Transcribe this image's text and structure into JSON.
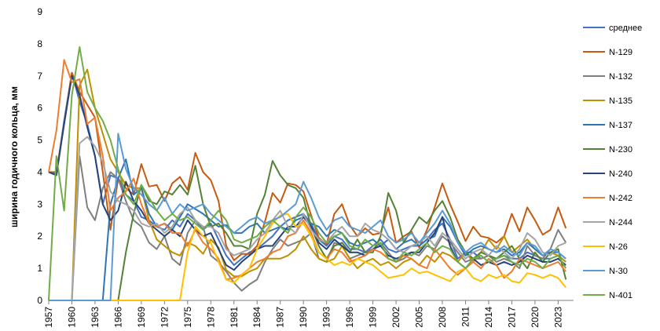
{
  "chart_data": {
    "type": "line",
    "title": "",
    "xlabel": "",
    "ylabel": "ширина годичного кольца, мм",
    "ylim": [
      0,
      9
    ],
    "yticks": [
      0,
      1,
      2,
      3,
      4,
      5,
      6,
      7,
      8,
      9
    ],
    "xlim": [
      1957,
      2025
    ],
    "xticks": [
      1957,
      1960,
      1963,
      1966,
      1969,
      1972,
      1975,
      1978,
      1981,
      1984,
      1987,
      1990,
      1993,
      1996,
      1999,
      2002,
      2005,
      2008,
      2011,
      2014,
      2017,
      2020,
      2023
    ],
    "grid": false,
    "legend_position": "right",
    "series": [
      {
        "name": "среднее",
        "color": "#4472C4",
        "start": 1957,
        "values": [
          4.0,
          3.95,
          5.6,
          7.1,
          6.2,
          5.5,
          4.5,
          3.0,
          3.9,
          3.8,
          3.3,
          3.1,
          2.6,
          2.5,
          2.3,
          2.2,
          2.5,
          2.3,
          2.7,
          2.5,
          2.2,
          2.4,
          1.9,
          1.4,
          1.1,
          1.3,
          1.5,
          1.6,
          1.8,
          2.0,
          2.3,
          2.5,
          2.6,
          2.7,
          2.4,
          1.9,
          1.7,
          2.0,
          1.9,
          1.6,
          1.6,
          1.5,
          1.7,
          1.9,
          1.6,
          1.5,
          1.6,
          1.7,
          1.7,
          1.9,
          2.2,
          2.4,
          1.9,
          1.3,
          1.5,
          1.5,
          1.3,
          1.4,
          1.3,
          1.4,
          1.3,
          1.3,
          1.5,
          1.4,
          1.3,
          1.3,
          1.4,
          1.2
        ]
      },
      {
        "name": "N-129",
        "color": "#C55A11",
        "start": 1957,
        "values": [
          4.0,
          4.0,
          5.5,
          7.1,
          6.5,
          6.1,
          5.7,
          4.0,
          2.2,
          3.8,
          3.5,
          3.3,
          4.25,
          3.55,
          3.6,
          3.1,
          3.65,
          3.85,
          3.45,
          4.6,
          4.0,
          3.75,
          3.1,
          1.7,
          1.25,
          1.45,
          1.45,
          1.7,
          2.45,
          3.35,
          3.05,
          3.65,
          3.6,
          3.4,
          2.65,
          1.95,
          1.75,
          2.7,
          3.0,
          2.35,
          2.0,
          2.25,
          2.05,
          2.1,
          2.9,
          1.8,
          2.0,
          2.15,
          1.65,
          2.2,
          2.9,
          3.65,
          3.0,
          2.45,
          1.85,
          2.3,
          2.0,
          1.95,
          1.8,
          2.0,
          2.7,
          2.15,
          2.9,
          2.5,
          2.05,
          2.2,
          2.9,
          2.25
        ]
      },
      {
        "name": "N-132",
        "color": "#7F7F7F",
        "start": 1957,
        "values": [
          0,
          0,
          0,
          0,
          4.5,
          2.9,
          2.5,
          3.5,
          4.0,
          3.8,
          3.1,
          2.5,
          2.3,
          1.8,
          1.6,
          2.0,
          1.3,
          1.1,
          2.1,
          2.5,
          2.3,
          1.4,
          1.2,
          0.9,
          0.55,
          0.3,
          0.5,
          0.65,
          1.2,
          1.6,
          1.9,
          1.7,
          1.8,
          1.9,
          2.1,
          1.3,
          1.2,
          1.8,
          1.7,
          1.3,
          1.4,
          1.5,
          1.6,
          1.8,
          1.5,
          1.2,
          1.3,
          1.5,
          1.4,
          1.7,
          1.6,
          2.0,
          1.8,
          1.5,
          1.2,
          1.3,
          1.3,
          1.4,
          1.2,
          1.3,
          1.2,
          1.0,
          1.7,
          1.4,
          1.3,
          1.6,
          2.2,
          1.8
        ]
      },
      {
        "name": "N-135",
        "color": "#BF9000",
        "start": 1957,
        "values": [
          0,
          0,
          0,
          0,
          6.7,
          7.2,
          6.0,
          5.2,
          4.4,
          4.0,
          3.6,
          3.5,
          3.5,
          2.5,
          1.9,
          1.7,
          1.5,
          1.4,
          1.8,
          1.7,
          1.45,
          1.9,
          1.65,
          0.95,
          0.75,
          0.75,
          0.9,
          1.0,
          1.3,
          1.3,
          1.3,
          1.4,
          1.6,
          2.0,
          1.6,
          1.3,
          1.2,
          1.3,
          1.7,
          1.3,
          1.0,
          1.2,
          1.3,
          1.1,
          1.2,
          1.0,
          1.2,
          1.3,
          1.1,
          1.4,
          1.2,
          1.5,
          1.4,
          1.2,
          1.5,
          1.2,
          1.5,
          1.9,
          1.6,
          2.0,
          1.5,
          1.7,
          1.9,
          1.6,
          1.4,
          1.5,
          1.4,
          1.2
        ]
      },
      {
        "name": "N-137",
        "color": "#2E75B6",
        "start": 1957,
        "values": [
          0,
          0,
          0,
          0,
          0,
          0,
          0,
          0,
          3.0,
          3.8,
          4.4,
          3.3,
          3.5,
          2.7,
          2.3,
          2.4,
          2.2,
          2.6,
          3.0,
          2.85,
          2.7,
          2.5,
          2.3,
          2.35,
          2.1,
          2.1,
          2.3,
          2.4,
          2.1,
          2.2,
          2.3,
          2.2,
          2.5,
          2.6,
          2.4,
          2.3,
          2.0,
          2.2,
          2.1,
          1.8,
          1.7,
          1.8,
          1.9,
          1.7,
          1.9,
          1.6,
          1.8,
          1.9,
          1.7,
          1.9,
          2.0,
          2.6,
          2.3,
          1.8,
          1.4,
          1.6,
          1.7,
          1.6,
          1.5,
          1.6,
          1.4,
          1.5,
          1.8,
          1.6,
          1.4,
          1.5,
          1.5,
          1.3
        ]
      },
      {
        "name": "N-230",
        "color": "#548235",
        "start": 1957,
        "values": [
          0,
          0,
          0,
          0,
          0,
          0,
          0,
          0,
          0,
          0,
          1.5,
          2.7,
          3.6,
          3.1,
          3.0,
          3.4,
          3.3,
          3.6,
          3.3,
          4.2,
          3.0,
          2.3,
          2.4,
          2.1,
          1.7,
          1.7,
          1.6,
          2.7,
          3.3,
          4.35,
          3.9,
          3.6,
          3.5,
          3.2,
          2.3,
          1.7,
          1.3,
          1.7,
          1.8,
          1.5,
          1.9,
          1.5,
          1.5,
          2.0,
          3.35,
          2.8,
          1.8,
          2.2,
          2.6,
          2.4,
          2.8,
          3.1,
          2.6,
          1.9,
          1.5,
          1.3,
          1.5,
          1.4,
          1.3,
          1.5,
          1.7,
          1.3,
          1.0,
          1.5,
          1.2,
          1.5,
          1.6,
          0.65
        ]
      },
      {
        "name": "N-240",
        "color": "#264478",
        "start": 1957,
        "values": [
          4.0,
          3.9,
          5.5,
          7.0,
          6.4,
          5.4,
          4.5,
          3.0,
          2.5,
          2.8,
          3.7,
          3.1,
          2.8,
          2.4,
          2.2,
          2.0,
          2.2,
          2.0,
          2.5,
          2.2,
          2.0,
          2.1,
          1.6,
          1.1,
          0.95,
          1.2,
          1.4,
          1.6,
          1.7,
          1.7,
          2.0,
          2.3,
          2.3,
          2.6,
          2.3,
          1.8,
          1.6,
          1.9,
          1.7,
          1.5,
          1.5,
          1.4,
          1.6,
          1.7,
          1.4,
          1.3,
          1.4,
          1.5,
          1.5,
          1.8,
          2.1,
          2.6,
          1.7,
          1.2,
          1.0,
          1.3,
          1.1,
          1.2,
          1.1,
          1.2,
          1.1,
          1.2,
          1.4,
          1.3,
          1.2,
          1.2,
          1.3,
          1.1
        ]
      },
      {
        "name": "N-242",
        "color": "#ED7D31",
        "start": 1957,
        "values": [
          4.0,
          5.3,
          7.5,
          6.8,
          6.9,
          5.5,
          5.7,
          4.5,
          2.8,
          3.2,
          3.4,
          3.8,
          3.0,
          2.4,
          2.3,
          2.4,
          2.1,
          2.1,
          1.7,
          2.2,
          1.8,
          1.6,
          1.3,
          0.65,
          0.7,
          0.8,
          1.0,
          1.2,
          1.3,
          1.5,
          1.6,
          2.0,
          2.1,
          2.5,
          2.1,
          1.5,
          1.3,
          1.6,
          1.5,
          1.2,
          1.3,
          1.4,
          1.6,
          1.5,
          1.3,
          1.2,
          1.4,
          1.3,
          1.1,
          1.0,
          1.6,
          1.3,
          1.0,
          0.8,
          1.0,
          1.2,
          1.0,
          1.3,
          1.1,
          0.7,
          0.9,
          1.3,
          1.2,
          1.1,
          1.0,
          1.1,
          1.2,
          0.9
        ]
      },
      {
        "name": "N-244",
        "color": "#A5A5A5",
        "start": 1957,
        "values": [
          0,
          0,
          0,
          0,
          4.9,
          5.1,
          4.8,
          4.3,
          3.4,
          3.1,
          3.0,
          2.8,
          2.4,
          2.3,
          2.4,
          2.1,
          2.3,
          2.7,
          2.9,
          2.5,
          2.3,
          2.3,
          2.1,
          1.6,
          1.4,
          1.5,
          1.6,
          1.9,
          2.1,
          2.5,
          2.8,
          2.3,
          2.1,
          2.7,
          2.2,
          1.9,
          1.8,
          2.1,
          2.3,
          2.0,
          2.0,
          2.4,
          2.2,
          2.1,
          1.9,
          1.6,
          1.5,
          1.7,
          1.8,
          2.0,
          1.7,
          2.1,
          1.9,
          1.6,
          1.3,
          1.5,
          1.6,
          1.4,
          1.7,
          1.5,
          1.3,
          1.6,
          2.1,
          1.9,
          1.5,
          1.4,
          1.7,
          1.8
        ]
      },
      {
        "name": "N-26",
        "color": "#FFC000",
        "start": 1957,
        "values": [
          0,
          0,
          0,
          0,
          0,
          0,
          0,
          0,
          0,
          0,
          0,
          0,
          0,
          0,
          0,
          0,
          0,
          0,
          1.5,
          2.3,
          2.0,
          1.8,
          1.2,
          0.65,
          0.55,
          0.8,
          1.0,
          1.6,
          2.0,
          2.4,
          2.65,
          2.7,
          2.3,
          2.4,
          2.0,
          1.5,
          1.3,
          1.1,
          1.2,
          1.1,
          1.3,
          1.2,
          1.1,
          0.9,
          0.7,
          0.75,
          0.8,
          1.0,
          0.85,
          0.9,
          0.8,
          0.7,
          0.6,
          0.9,
          1.0,
          0.7,
          0.6,
          0.8,
          0.7,
          0.8,
          0.6,
          0.55,
          0.85,
          0.8,
          0.7,
          0.8,
          0.7,
          0.4
        ]
      },
      {
        "name": "N-30",
        "color": "#5B9BD5",
        "start": 1957,
        "values": [
          0,
          0,
          0,
          0,
          0,
          0,
          0,
          0,
          0,
          5.2,
          4.1,
          3.5,
          3.3,
          3.0,
          2.8,
          3.2,
          2.7,
          3.0,
          2.8,
          2.9,
          3.0,
          2.7,
          2.5,
          2.3,
          2.1,
          2.3,
          2.5,
          2.6,
          2.4,
          2.5,
          2.6,
          2.8,
          3.0,
          3.7,
          3.2,
          2.6,
          2.2,
          2.5,
          2.6,
          2.3,
          2.2,
          2.1,
          2.3,
          2.5,
          2.0,
          1.8,
          1.9,
          2.1,
          1.8,
          2.1,
          2.4,
          2.8,
          2.4,
          1.8,
          1.5,
          1.7,
          1.8,
          1.6,
          1.5,
          1.7,
          1.5,
          1.4,
          1.8,
          1.7,
          1.4,
          1.6,
          1.5,
          1.3
        ]
      },
      {
        "name": "N-401",
        "color": "#70AD47",
        "start": 1957,
        "values": [
          0,
          4.5,
          2.8,
          6.4,
          7.9,
          6.5,
          6.0,
          5.6,
          5.0,
          4.1,
          3.3,
          3.0,
          3.6,
          3.2,
          2.8,
          2.5,
          2.7,
          2.5,
          2.6,
          2.4,
          2.2,
          2.5,
          2.8,
          2.5,
          1.9,
          1.8,
          1.9,
          2.0,
          2.3,
          2.5,
          2.3,
          2.1,
          2.6,
          2.9,
          2.6,
          2.1,
          1.8,
          2.0,
          2.1,
          1.7,
          1.6,
          1.9,
          1.7,
          1.8,
          1.3,
          1.2,
          1.5,
          1.4,
          1.6,
          1.8,
          1.5,
          1.7,
          1.6,
          1.2,
          1.0,
          1.3,
          1.4,
          1.2,
          1.3,
          1.4,
          1.2,
          1.1,
          1.3,
          1.2,
          1.0,
          1.3,
          1.4,
          1.0
        ]
      }
    ]
  }
}
